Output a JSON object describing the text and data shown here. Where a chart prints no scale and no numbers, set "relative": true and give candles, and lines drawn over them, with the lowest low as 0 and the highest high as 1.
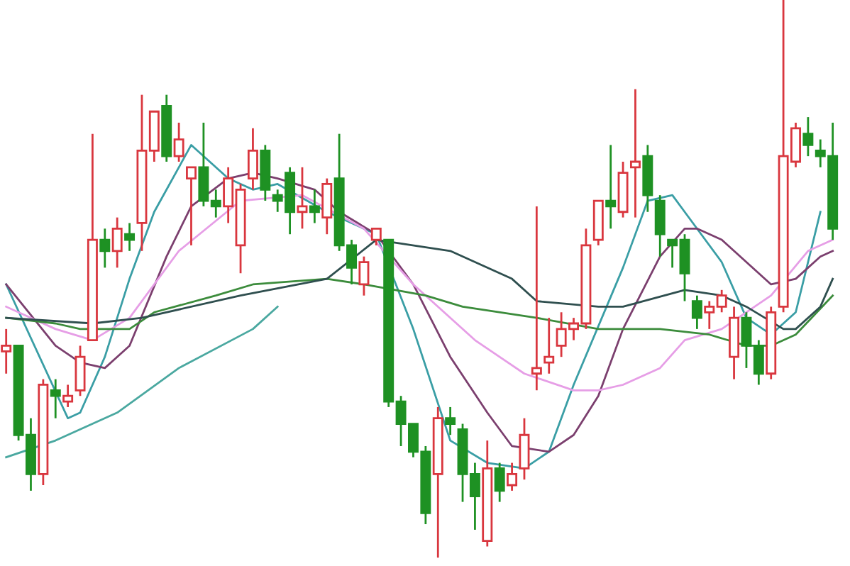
{
  "chart_data": {
    "type": "candlestick",
    "relative": true,
    "categories": [
      null,
      null,
      null,
      null,
      null,
      null,
      null,
      null,
      null,
      null,
      null,
      null,
      null,
      null,
      null,
      null,
      null,
      null,
      null,
      null,
      null,
      null,
      null,
      null,
      null,
      null,
      null,
      null,
      null,
      null,
      null,
      null,
      null,
      null,
      null,
      null,
      null,
      null,
      null,
      null,
      null,
      null,
      null,
      null,
      null,
      null,
      null,
      null,
      null,
      null,
      null,
      null,
      null,
      null,
      null,
      null,
      null,
      null,
      null,
      null,
      null,
      null,
      null,
      null,
      null,
      null,
      null,
      null
    ],
    "ohlc": [
      [
        0.37,
        0.41,
        0.33,
        0.38
      ],
      [
        0.38,
        0.38,
        0.21,
        0.22
      ],
      [
        0.22,
        0.25,
        0.12,
        0.15
      ],
      [
        0.15,
        0.32,
        0.13,
        0.31
      ],
      [
        0.3,
        0.32,
        0.25,
        0.29
      ],
      [
        0.28,
        0.31,
        0.27,
        0.29
      ],
      [
        0.3,
        0.38,
        0.29,
        0.36
      ],
      [
        0.39,
        0.76,
        0.39,
        0.57
      ],
      [
        0.57,
        0.59,
        0.52,
        0.55
      ],
      [
        0.55,
        0.61,
        0.52,
        0.59
      ],
      [
        0.58,
        0.6,
        0.55,
        0.57
      ],
      [
        0.6,
        0.83,
        0.55,
        0.73
      ],
      [
        0.73,
        0.8,
        0.71,
        0.8
      ],
      [
        0.81,
        0.83,
        0.71,
        0.72
      ],
      [
        0.72,
        0.78,
        0.71,
        0.75
      ],
      [
        0.68,
        0.7,
        0.56,
        0.7
      ],
      [
        0.7,
        0.78,
        0.63,
        0.64
      ],
      [
        0.64,
        0.66,
        0.61,
        0.63
      ],
      [
        0.63,
        0.7,
        0.6,
        0.68
      ],
      [
        0.56,
        0.67,
        0.51,
        0.66
      ],
      [
        0.68,
        0.77,
        0.66,
        0.73
      ],
      [
        0.73,
        0.74,
        0.64,
        0.66
      ],
      [
        0.65,
        0.66,
        0.62,
        0.64
      ],
      [
        0.69,
        0.7,
        0.58,
        0.62
      ],
      [
        0.62,
        0.7,
        0.59,
        0.63
      ],
      [
        0.63,
        0.66,
        0.6,
        0.62
      ],
      [
        0.61,
        0.68,
        0.58,
        0.67
      ],
      [
        0.68,
        0.76,
        0.55,
        0.56
      ],
      [
        0.56,
        0.57,
        0.49,
        0.52
      ],
      [
        0.49,
        0.54,
        0.47,
        0.53
      ],
      [
        0.57,
        0.59,
        0.56,
        0.59
      ],
      [
        0.57,
        0.57,
        0.27,
        0.28
      ],
      [
        0.28,
        0.29,
        0.2,
        0.24
      ],
      [
        0.24,
        0.24,
        0.18,
        0.19
      ],
      [
        0.19,
        0.2,
        0.06,
        0.08
      ],
      [
        0.15,
        0.27,
        0,
        0.25
      ],
      [
        0.25,
        0.27,
        0.22,
        0.24
      ],
      [
        0.23,
        0.24,
        0.1,
        0.15
      ],
      [
        0.15,
        0.17,
        0.05,
        0.11
      ],
      [
        0.03,
        0.21,
        0.02,
        0.16
      ],
      [
        0.16,
        0.17,
        0.1,
        0.12
      ],
      [
        0.13,
        0.17,
        0.12,
        0.15
      ],
      [
        0.16,
        0.25,
        0.14,
        0.22
      ],
      [
        0.33,
        0.63,
        0.3,
        0.34
      ],
      [
        0.35,
        0.43,
        0.33,
        0.36
      ],
      [
        0.38,
        0.44,
        0.36,
        0.41
      ],
      [
        0.41,
        0.43,
        0.39,
        0.42
      ],
      [
        0.42,
        0.59,
        0.41,
        0.56
      ],
      [
        0.57,
        0.64,
        0.56,
        0.64
      ],
      [
        0.64,
        0.74,
        0.59,
        0.63
      ],
      [
        0.62,
        0.71,
        0.61,
        0.69
      ],
      [
        0.7,
        0.84,
        0.61,
        0.71
      ],
      [
        0.72,
        0.74,
        0.62,
        0.65
      ],
      [
        0.64,
        0.65,
        0.54,
        0.58
      ],
      [
        0.57,
        0.57,
        0.52,
        0.56
      ],
      [
        0.57,
        0.58,
        0.46,
        0.51
      ],
      [
        0.46,
        0.47,
        0.41,
        0.43
      ],
      [
        0.44,
        0.46,
        0.41,
        0.45
      ],
      [
        0.45,
        0.48,
        0.44,
        0.47
      ],
      [
        0.36,
        0.45,
        0.32,
        0.43
      ],
      [
        0.43,
        0.44,
        0.34,
        0.38
      ],
      [
        0.38,
        0.39,
        0.31,
        0.33
      ],
      [
        0.33,
        0.45,
        0.32,
        0.44
      ],
      [
        0.45,
        1,
        0.44,
        0.72
      ],
      [
        0.71,
        0.78,
        0.7,
        0.77
      ],
      [
        0.76,
        0.79,
        0.72,
        0.74
      ],
      [
        0.73,
        0.75,
        0.7,
        0.72
      ],
      [
        0.72,
        0.78,
        0.57,
        0.59
      ]
    ],
    "colors": [
      "#d9363e",
      "#1e9123",
      "#1e9123",
      "#d9363e",
      "#1e9123",
      "#d9363e",
      "#d9363e",
      "#d9363e",
      "#1e9123",
      "#d9363e",
      "#1e9123",
      "#d9363e",
      "#d9363e",
      "#1e9123",
      "#d9363e",
      "#d9363e",
      "#1e9123",
      "#1e9123",
      "#d9363e",
      "#d9363e",
      "#d9363e",
      "#1e9123",
      "#1e9123",
      "#1e9123",
      "#d9363e",
      "#1e9123",
      "#d9363e",
      "#1e9123",
      "#1e9123",
      "#d9363e",
      "#d9363e",
      "#1e9123",
      "#1e9123",
      "#1e9123",
      "#1e9123",
      "#d9363e",
      "#1e9123",
      "#1e9123",
      "#1e9123",
      "#d9363e",
      "#1e9123",
      "#d9363e",
      "#d9363e",
      "#d9363e",
      "#d9363e",
      "#d9363e",
      "#d9363e",
      "#d9363e",
      "#d9363e",
      "#1e9123",
      "#d9363e",
      "#d9363e",
      "#1e9123",
      "#1e9123",
      "#1e9123",
      "#1e9123",
      "#1e9123",
      "#d9363e",
      "#d9363e",
      "#d9363e",
      "#1e9123",
      "#1e9123",
      "#d9363e",
      "#d9363e",
      "#d9363e",
      "#1e9123",
      "#1e9123",
      "#1e9123"
    ],
    "series": [
      {
        "type": "line",
        "color": "#3a9ea5",
        "values": [
          0.49,
          null,
          null,
          null,
          null,
          0.25,
          0.26,
          null,
          0.36,
          null,
          0.5,
          null,
          0.62,
          null,
          null,
          0.74,
          null,
          null,
          0.68,
          null,
          0.66,
          null,
          0.67,
          null,
          null,
          null,
          0.62,
          null,
          null,
          null,
          0.58,
          null,
          null,
          0.41,
          null,
          null,
          0.21,
          null,
          null,
          0.17,
          null,
          null,
          0.16,
          null,
          0.19,
          null,
          0.31,
          null,
          null,
          null,
          0.52,
          null,
          0.64,
          null,
          0.65,
          0.62,
          null,
          null,
          0.53,
          null,
          0.43,
          null,
          0.4,
          null,
          0.44,
          null,
          0.62,
          null
        ]
      },
      {
        "type": "line",
        "color": "#7b3f6e",
        "values": [
          0.49,
          null,
          null,
          null,
          0.38,
          null,
          0.35,
          null,
          0.34,
          null,
          0.38,
          null,
          null,
          0.54,
          null,
          0.63,
          null,
          null,
          0.68,
          null,
          0.69,
          null,
          0.68,
          null,
          null,
          0.66,
          null,
          0.62,
          null,
          null,
          0.58,
          null,
          null,
          0.49,
          null,
          null,
          0.36,
          null,
          null,
          0.26,
          null,
          0.2,
          null,
          null,
          0.19,
          null,
          0.22,
          null,
          0.29,
          null,
          0.41,
          null,
          null,
          0.54,
          null,
          0.59,
          0.59,
          null,
          0.57,
          null,
          0.53,
          null,
          0.49,
          null,
          0.5,
          null,
          0.54,
          0.55
        ]
      },
      {
        "type": "line",
        "color": "#e69ee6",
        "values": [
          0.45,
          null,
          null,
          null,
          0.41,
          null,
          null,
          0.39,
          null,
          null,
          0.43,
          null,
          null,
          null,
          0.55,
          null,
          null,
          null,
          null,
          0.64,
          null,
          null,
          null,
          null,
          0.65,
          null,
          null,
          null,
          null,
          0.59,
          null,
          null,
          null,
          0.49,
          null,
          null,
          null,
          null,
          0.39,
          null,
          null,
          null,
          0.33,
          null,
          null,
          null,
          0.3,
          null,
          0.3,
          null,
          0.31,
          null,
          null,
          0.34,
          null,
          0.39,
          null,
          null,
          0.41,
          null,
          null,
          null,
          0.47,
          null,
          null,
          0.55,
          null,
          0.57
        ]
      },
      {
        "type": "line",
        "color": "#3c8c3c",
        "values": [
          0.43,
          null,
          null,
          null,
          0.42,
          null,
          0.41,
          null,
          null,
          null,
          0.41,
          null,
          0.44,
          null,
          null,
          null,
          null,
          0.47,
          null,
          null,
          0.49,
          null,
          null,
          null,
          null,
          null,
          0.5,
          null,
          null,
          0.49,
          null,
          null,
          null,
          null,
          0.47,
          null,
          null,
          0.45,
          null,
          null,
          null,
          null,
          null,
          0.43,
          null,
          null,
          null,
          null,
          0.41,
          null,
          null,
          null,
          null,
          0.41,
          null,
          null,
          null,
          0.4,
          null,
          null,
          0.38,
          null,
          0.38,
          null,
          0.4,
          null,
          null,
          0.47
        ]
      },
      {
        "type": "line",
        "color": "#2f4f4f",
        "values": [
          0.43,
          null,
          null,
          null,
          null,
          null,
          null,
          0.42,
          null,
          null,
          null,
          0.43,
          null,
          null,
          null,
          null,
          null,
          null,
          null,
          0.47,
          null,
          null,
          null,
          null,
          null,
          null,
          0.5,
          null,
          null,
          null,
          0.57,
          null,
          null,
          null,
          null,
          null,
          0.55,
          null,
          null,
          null,
          null,
          0.5,
          null,
          0.46,
          null,
          null,
          null,
          null,
          0.45,
          null,
          0.45,
          null,
          null,
          null,
          null,
          0.48,
          null,
          null,
          0.47,
          null,
          0.45,
          null,
          null,
          0.41,
          0.41,
          null,
          0.45,
          0.5
        ]
      },
      {
        "type": "line",
        "color": "#4aa8a0",
        "values": [
          0.18,
          null,
          null,
          null,
          0.21,
          null,
          null,
          null,
          null,
          0.26,
          null,
          null,
          null,
          null,
          0.34,
          null,
          null,
          null,
          null,
          null,
          0.41,
          null,
          0.45,
          null,
          null,
          null,
          null,
          null,
          null,
          null,
          null,
          null,
          null,
          null,
          null,
          null,
          null,
          null,
          null,
          null,
          null,
          null,
          null,
          null,
          null,
          null,
          null,
          null,
          null,
          null,
          null,
          null,
          null,
          null,
          null,
          null,
          null,
          null,
          null,
          null,
          null,
          null,
          null,
          null,
          null,
          null,
          null,
          null
        ]
      }
    ]
  }
}
